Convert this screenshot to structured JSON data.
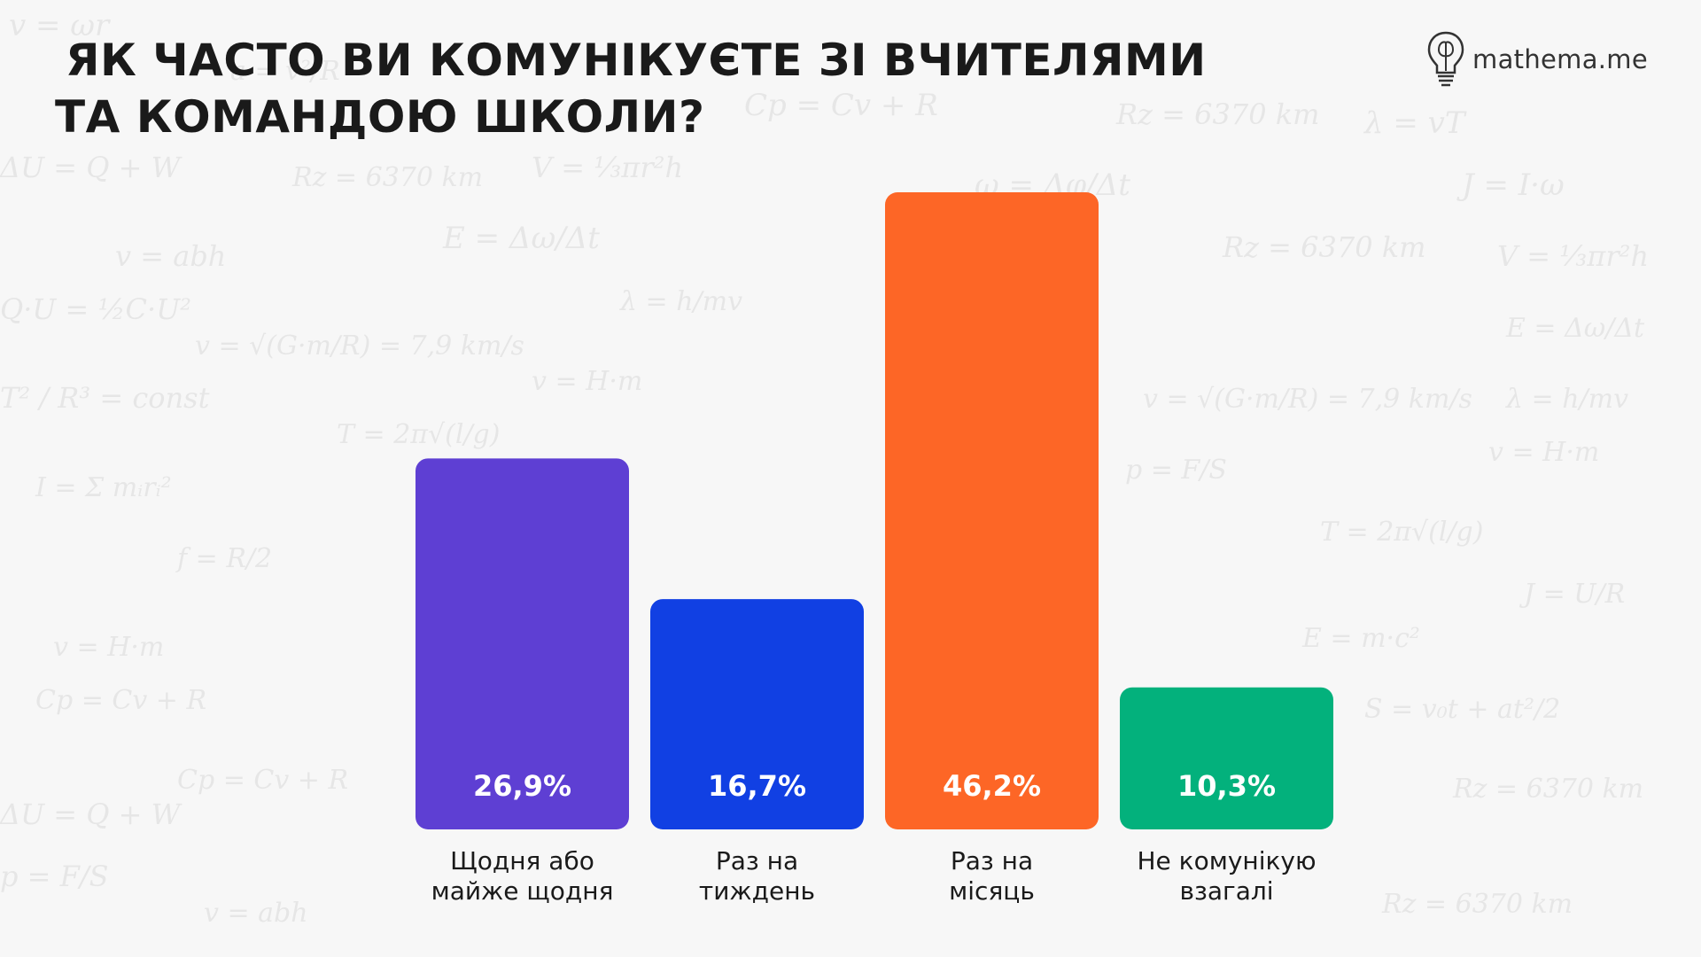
{
  "title": {
    "line1": "ЯК ЧАСТО ВИ КОМУНІКУЄТЕ ЗІ ВЧИТЕЛЯМИ",
    "line2": "ТА КОМАНДОЮ ШКОЛИ?"
  },
  "logo": {
    "text": "mathema.me",
    "icon": "lightbulb-brain-icon"
  },
  "chart_data": {
    "type": "bar",
    "title": "ЯК ЧАСТО ВИ КОМУНІКУЄТЕ ЗІ ВЧИТЕЛЯМИ ТА КОМАНДОЮ ШКОЛИ?",
    "categories": [
      [
        "Щодня або",
        "майже щодня"
      ],
      [
        "Раз на",
        "тиждень"
      ],
      [
        "Раз на",
        "місяць"
      ],
      [
        "Не комунікую",
        "взагалі"
      ]
    ],
    "values": [
      26.9,
      16.7,
      46.2,
      10.3
    ],
    "value_labels": [
      "26,9%",
      "16,7%",
      "46,2%",
      "10,3%"
    ],
    "colors": [
      "#5e3fd3",
      "#1140e3",
      "#fd6626",
      "#03b17c"
    ],
    "ylim": [
      0,
      46.2
    ],
    "grid": false,
    "legend": "none"
  }
}
